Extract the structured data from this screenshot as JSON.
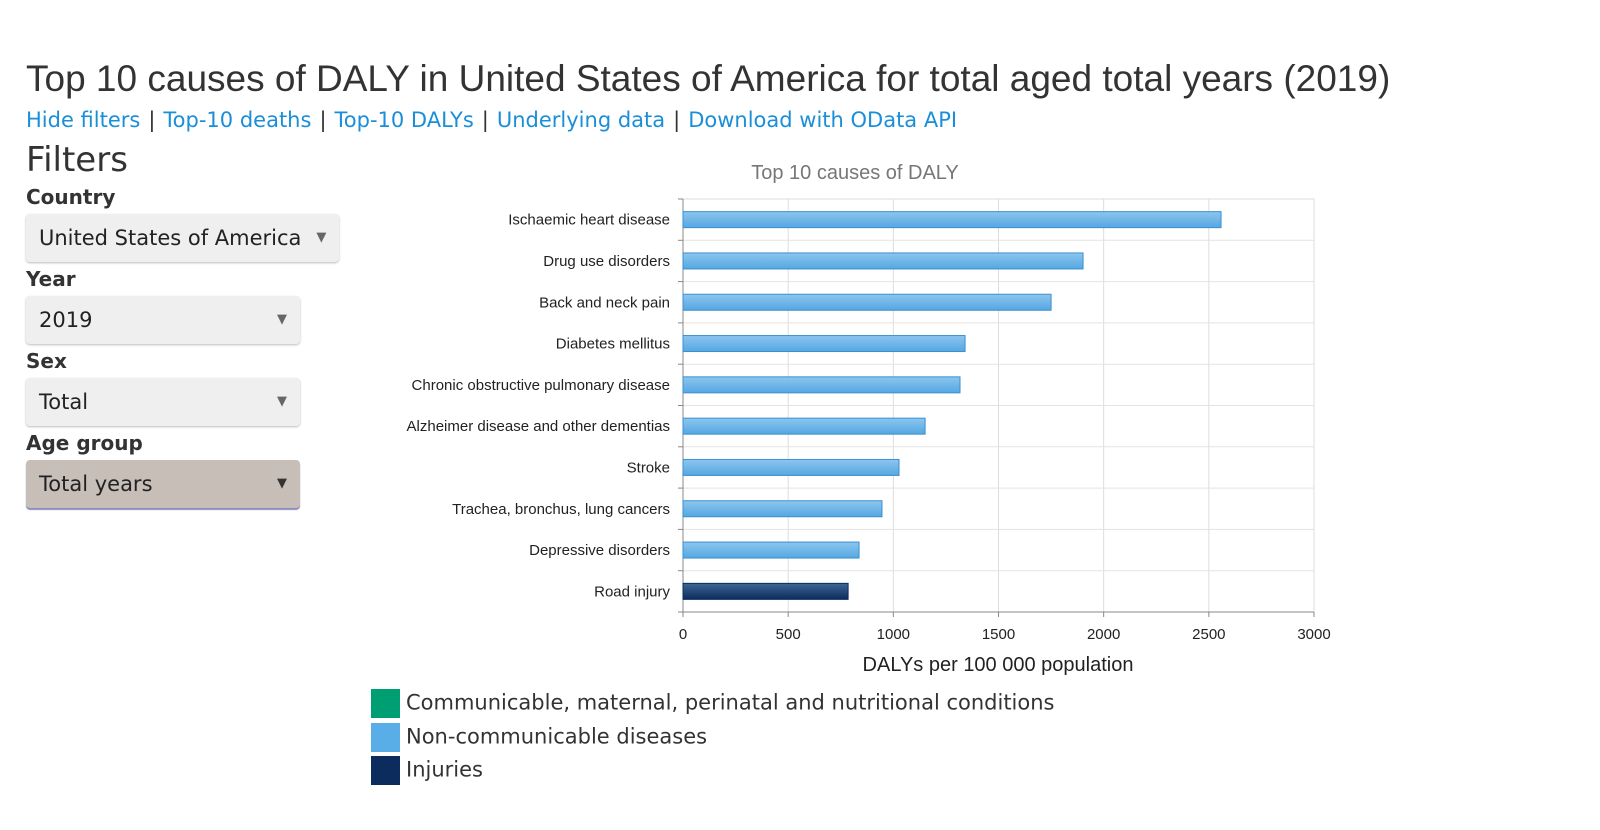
{
  "title": "Top 10 causes of DALY in United States of America for total aged total years (2019)",
  "links": [
    "Hide filters",
    "Top-10 deaths",
    "Top-10 DALYs",
    "Underlying data",
    "Download with OData API"
  ],
  "filters": {
    "heading": "Filters",
    "items": [
      {
        "label": "Country",
        "value": "United States of America"
      },
      {
        "label": "Year",
        "value": "2019"
      },
      {
        "label": "Sex",
        "value": "Total"
      },
      {
        "label": "Age group",
        "value": "Total years"
      }
    ]
  },
  "chart_data": {
    "type": "bar",
    "orientation": "horizontal",
    "title": "Top 10 causes of DALY",
    "xlabel": "DALYs per 100 000 population",
    "ylabel": "",
    "xlim": [
      0,
      3000
    ],
    "xticks": [
      "0",
      "500",
      "1000",
      "1500",
      "2000",
      "2500",
      "3000"
    ],
    "grid": true,
    "categories": [
      "Ischaemic heart disease",
      "Drug use disorders",
      "Back and neck pain",
      "Diabetes mellitus",
      "Chronic obstructive pulmonary disease",
      "Alzheimer disease and other dementias",
      "Stroke",
      "Trachea, bronchus, lung cancers",
      "Depressive disorders",
      "Road injury"
    ],
    "values": [
      2558,
      1902,
      1750,
      1341,
      1317,
      1151,
      1027,
      946,
      837,
      785
    ],
    "groups": [
      "Non-communicable diseases",
      "Non-communicable diseases",
      "Non-communicable diseases",
      "Non-communicable diseases",
      "Non-communicable diseases",
      "Non-communicable diseases",
      "Non-communicable diseases",
      "Non-communicable diseases",
      "Non-communicable diseases",
      "Injuries"
    ],
    "legend": [
      {
        "name": "Communicable, maternal, perinatal and nutritional conditions",
        "color": "#009e73"
      },
      {
        "name": "Non-communicable diseases",
        "color": "#5aaee8"
      },
      {
        "name": "Injuries",
        "color": "#0b2c5c"
      }
    ],
    "legend_position": "bottom"
  }
}
